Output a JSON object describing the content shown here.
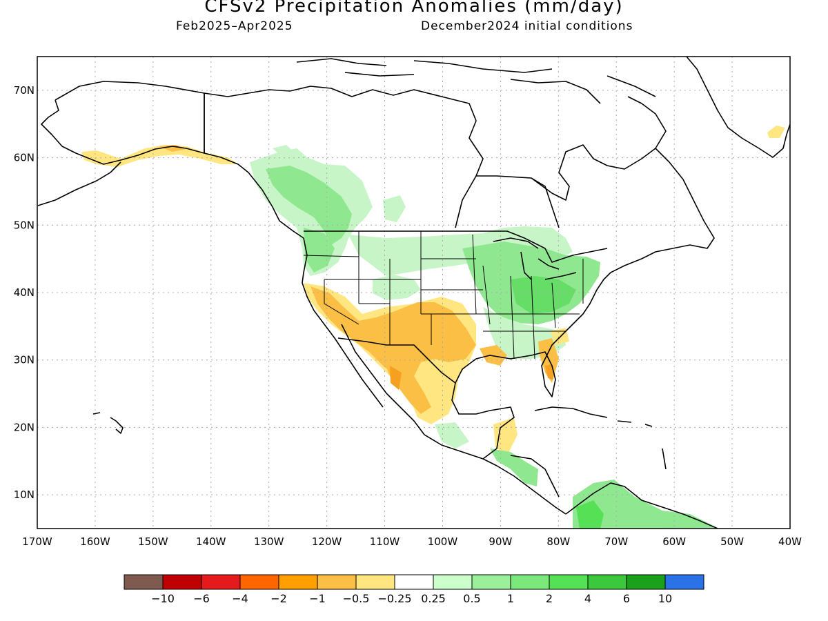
{
  "title": "CFSv2 Precipitation Anomalies (mm/day)",
  "period": "Feb2025–Apr2025",
  "init": "December2024 initial conditions",
  "map": {
    "lon_range": [
      -170,
      -40
    ],
    "lat_range": [
      5,
      75
    ],
    "lon_ticks": [
      -170,
      -160,
      -150,
      -140,
      -130,
      -120,
      -110,
      -100,
      -90,
      -80,
      -70,
      -60,
      -50,
      -40
    ],
    "lon_labels": [
      "170W",
      "160W",
      "150W",
      "140W",
      "130W",
      "120W",
      "110W",
      "100W",
      "90W",
      "80W",
      "70W",
      "60W",
      "50W",
      "40W"
    ],
    "lat_ticks": [
      10,
      20,
      30,
      40,
      50,
      60,
      70
    ],
    "lat_labels": [
      "10N",
      "20N",
      "30N",
      "40N",
      "50N",
      "60N",
      "70N"
    ]
  },
  "colorbar": {
    "colors": [
      "#7f5a4f",
      "#c00000",
      "#e41a1c",
      "#ff6600",
      "#ff9f00",
      "#fbbf45",
      "#ffe680",
      "#ffffff",
      "#ccffcc",
      "#9cf09c",
      "#7ce87c",
      "#55e055",
      "#3cc83c",
      "#1aa01a",
      "#2a72e6"
    ],
    "labels": [
      "−10",
      "−6",
      "−4",
      "−2",
      "−1",
      "−0.5",
      "−0.25",
      "0.25",
      "0.5",
      "1",
      "2",
      "4",
      "6",
      "10"
    ]
  },
  "palette": {
    "light_green": "#c8f5c8",
    "green": "#8fe88f",
    "mid_green": "#66dd66",
    "dark_green": "#44cc44",
    "light_yellow": "#ffe680",
    "orange": "#fbbf45",
    "dark_orange": "#f5a020"
  }
}
